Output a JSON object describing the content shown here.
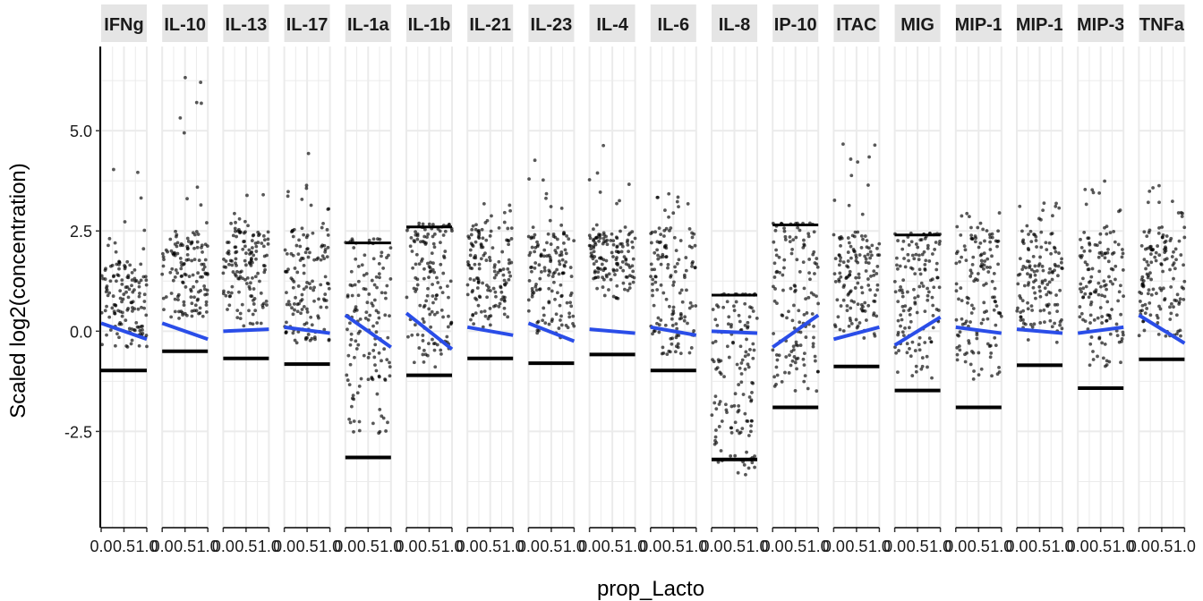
{
  "chart_data": {
    "type": "scatter",
    "facet_by": "cytokine",
    "xlabel": "prop_Lacto",
    "ylabel": "Scaled log2(concentration)",
    "xlim": [
      0,
      1
    ],
    "ylim": [
      -4.9,
      7.1
    ],
    "y_ticks": [
      -2.5,
      0.0,
      2.5,
      5.0
    ],
    "y_tick_labels": [
      "-2.5",
      "0.0",
      "2.5",
      "5.0"
    ],
    "x_tick_labels": [
      "0.0",
      "0.5",
      "1.0"
    ],
    "grid": true,
    "panels": [
      {
        "label": "IFNg",
        "trend": [
          0.2,
          -0.2
        ],
        "floor": -0.98,
        "low": -0.4,
        "high": 1.8,
        "max": 4.3
      },
      {
        "label": "IL-10",
        "trend": [
          0.2,
          -0.2
        ],
        "floor": -0.5,
        "low": 0.3,
        "high": 2.5,
        "max": 6.6
      },
      {
        "label": "IL-13",
        "trend": [
          0.0,
          0.05
        ],
        "floor": -0.68,
        "low": 0.1,
        "high": 2.5,
        "max": 3.5
      },
      {
        "label": "IL-17",
        "trend": [
          0.1,
          -0.05
        ],
        "floor": -0.82,
        "low": -0.3,
        "high": 2.6,
        "max": 4.6
      },
      {
        "label": "IL-1a",
        "trend": [
          0.4,
          -0.4
        ],
        "floor": -3.15,
        "low": -2.6,
        "high": 2.2,
        "max": 2.3
      },
      {
        "label": "IL-1b",
        "trend": [
          0.45,
          -0.45
        ],
        "floor": -1.1,
        "low": -0.9,
        "high": 2.6,
        "max": 2.7
      },
      {
        "label": "IL-21",
        "trend": [
          0.1,
          -0.1
        ],
        "floor": -0.68,
        "low": 0.1,
        "high": 2.6,
        "max": 3.2
      },
      {
        "label": "IL-23",
        "trend": [
          0.2,
          -0.25
        ],
        "floor": -0.8,
        "low": -0.2,
        "high": 2.5,
        "max": 4.3
      },
      {
        "label": "IL-4",
        "trend": [
          0.05,
          -0.05
        ],
        "floor": -0.58,
        "low": 0.8,
        "high": 2.5,
        "max": 4.7
      },
      {
        "label": "IL-6",
        "trend": [
          0.1,
          -0.1
        ],
        "floor": -0.98,
        "low": -0.6,
        "high": 2.6,
        "max": 3.6
      },
      {
        "label": "IL-8",
        "trend": [
          0.0,
          -0.05
        ],
        "floor": -3.2,
        "low": -3.6,
        "high": 0.9,
        "max": 0.95
      },
      {
        "label": "IP-10",
        "trend": [
          -0.4,
          0.4
        ],
        "floor": -1.9,
        "low": -1.5,
        "high": 2.65,
        "max": 2.7
      },
      {
        "label": "ITAC",
        "trend": [
          -0.2,
          0.1
        ],
        "floor": -0.88,
        "low": -0.2,
        "high": 2.5,
        "max": 4.95
      },
      {
        "label": "MIG",
        "trend": [
          -0.35,
          0.35
        ],
        "floor": -1.48,
        "low": -1.2,
        "high": 2.4,
        "max": 2.45
      },
      {
        "label": "MIP-1",
        "trend": [
          0.1,
          -0.05
        ],
        "floor": -1.9,
        "low": -1.3,
        "high": 2.5,
        "max": 3.1
      },
      {
        "label": "MIP-1",
        "trend": [
          0.05,
          -0.05
        ],
        "floor": -0.85,
        "low": -0.3,
        "high": 2.5,
        "max": 3.2
      },
      {
        "label": "MIP-3",
        "trend": [
          -0.05,
          0.1
        ],
        "floor": -1.42,
        "low": -1.0,
        "high": 2.5,
        "max": 3.8
      },
      {
        "label": "TNFa",
        "trend": [
          0.4,
          -0.3
        ],
        "floor": -0.7,
        "low": -0.2,
        "high": 2.6,
        "max": 3.7
      }
    ]
  }
}
